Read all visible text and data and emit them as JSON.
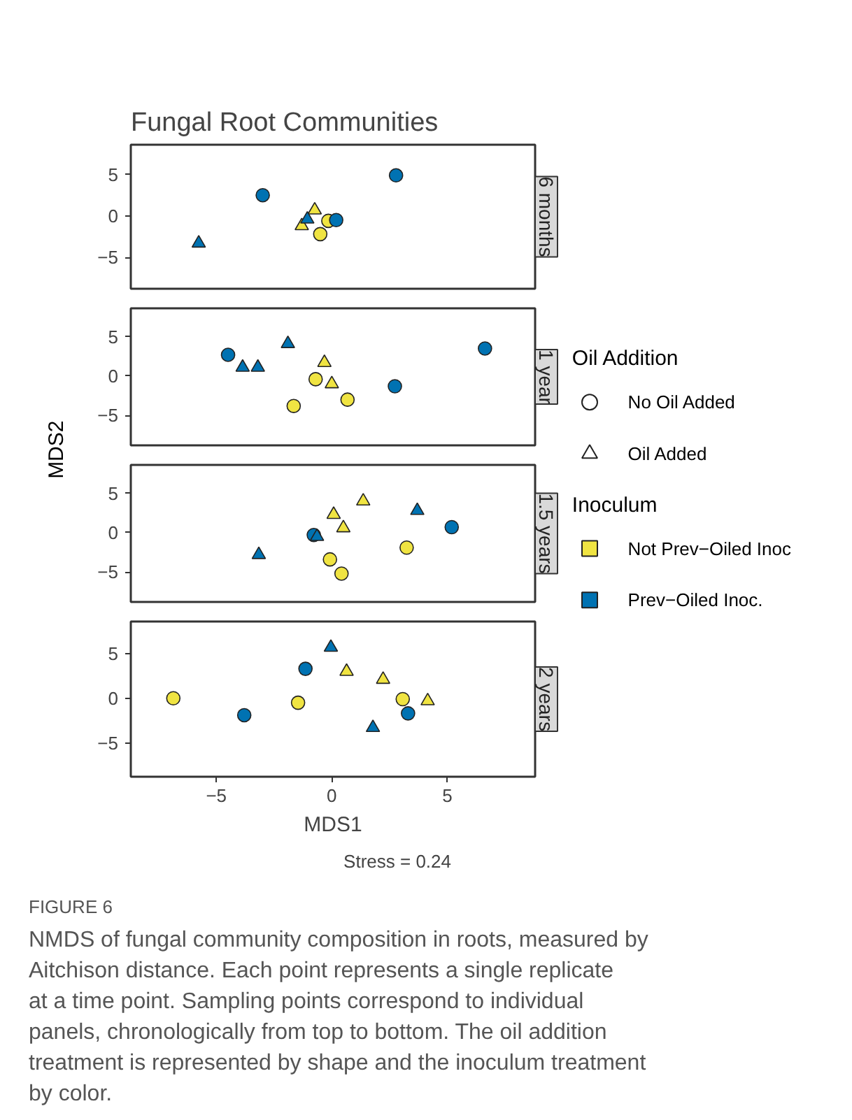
{
  "chart_data": [
    {
      "type": "scatter",
      "title": "Fungal Root Communities",
      "subtitle": "6 months",
      "xlim": [
        -8.7,
        8.8
      ],
      "ylim": [
        -8.8,
        8.6
      ],
      "xticks": [
        -5,
        0,
        5
      ],
      "yticks": [
        -5,
        0,
        5
      ],
      "tick_labels": "y",
      "grid": false,
      "series": [
        {
          "marker": "circle",
          "color": "#f0e442",
          "x": [
            -0.15,
            -0.5
          ],
          "values": [
            -0.6,
            -2.2
          ]
        },
        {
          "marker": "triangle",
          "color": "#f0e442",
          "x": [
            -0.74,
            -1.3
          ],
          "values": [
            0.7,
            -1.2
          ]
        },
        {
          "marker": "circle",
          "color": "#0072b2",
          "x": [
            -2.99,
            2.78,
            0.19
          ],
          "values": [
            2.5,
            4.9,
            -0.5
          ]
        },
        {
          "marker": "triangle",
          "color": "#0072b2",
          "x": [
            -5.76,
            -1.06
          ],
          "values": [
            -3.3,
            -0.4
          ]
        }
      ]
    },
    {
      "type": "scatter",
      "subtitle": "1 year",
      "ylabel": "MDS2",
      "xlim": [
        -8.7,
        8.8
      ],
      "ylim": [
        -8.8,
        8.6
      ],
      "xticks": [
        -5,
        0,
        5
      ],
      "yticks": [
        -5,
        0,
        5
      ],
      "tick_labels": "y",
      "grid": false,
      "series": [
        {
          "marker": "circle",
          "color": "#f0e442",
          "x": [
            -0.7,
            0.68,
            -1.65
          ],
          "values": [
            -0.4,
            -3.0,
            -3.8
          ]
        },
        {
          "marker": "triangle",
          "color": "#f0e442",
          "x": [
            -0.32,
            0.0
          ],
          "values": [
            1.7,
            -1.0
          ]
        },
        {
          "marker": "circle",
          "color": "#0072b2",
          "x": [
            -4.49,
            6.63,
            2.73
          ],
          "values": [
            2.7,
            3.5,
            -1.3
          ]
        },
        {
          "marker": "triangle",
          "color": "#0072b2",
          "x": [
            -3.86,
            -3.2,
            -1.9
          ],
          "values": [
            1.1,
            1.1,
            4.1
          ]
        }
      ]
    },
    {
      "type": "scatter",
      "subtitle": "1.5 years",
      "xlim": [
        -8.7,
        8.8
      ],
      "ylim": [
        -8.8,
        8.6
      ],
      "xticks": [
        -5,
        0,
        5
      ],
      "yticks": [
        -5,
        0,
        5
      ],
      "tick_labels": "y",
      "grid": false,
      "series": [
        {
          "marker": "circle",
          "color": "#f0e442",
          "x": [
            3.24,
            -0.08,
            0.42
          ],
          "values": [
            -1.9,
            -3.4,
            -5.2
          ]
        },
        {
          "marker": "triangle",
          "color": "#f0e442",
          "x": [
            1.36,
            0.08,
            0.5
          ],
          "values": [
            4.0,
            2.3,
            0.6
          ]
        },
        {
          "marker": "circle",
          "color": "#0072b2",
          "x": [
            -0.78,
            5.19
          ],
          "values": [
            -0.3,
            0.7
          ]
        },
        {
          "marker": "triangle",
          "color": "#0072b2",
          "x": [
            3.7,
            -0.64,
            -3.16
          ],
          "values": [
            2.8,
            -0.5,
            -2.8
          ]
        }
      ]
    },
    {
      "type": "scatter",
      "subtitle": "2 years",
      "xlabel": "MDS1",
      "xlim": [
        -8.7,
        8.8
      ],
      "ylim": [
        -8.8,
        8.6
      ],
      "xticks": [
        -5,
        0,
        5
      ],
      "yticks": [
        -5,
        0,
        5
      ],
      "grid": false,
      "annotations": [
        "Stress = 0.24",
        "FIGURE 6",
        "NMDS of fungal community composition in roots, measured by Aitchison distance. Each point represents a single replicate at a time point. Sampling points correspond to individual panels, chronologically from top to bottom. The oil addition treatment is represented by shape and the inoculum treatment by color."
      ],
      "series": [
        {
          "marker": "circle",
          "color": "#f0e442",
          "x": [
            -6.86,
            -1.46,
            3.07
          ],
          "values": [
            0,
            -0.5,
            -0.1
          ]
        },
        {
          "marker": "triangle",
          "color": "#f0e442",
          "x": [
            0.64,
            2.22,
            4.15
          ],
          "values": [
            3.0,
            2.1,
            -0.3
          ]
        },
        {
          "marker": "circle",
          "color": "#0072b2",
          "x": [
            -3.79,
            -1.14,
            3.3
          ],
          "values": [
            -1.9,
            3.3,
            -1.7
          ]
        },
        {
          "marker": "triangle",
          "color": "#0072b2",
          "x": [
            -0.04,
            1.78
          ],
          "values": [
            5.7,
            -3.3
          ]
        }
      ]
    },
    {
      "type": "other",
      "annotations": [
        "Oil Addition",
        "Inoculum"
      ],
      "series": [
        {
          "name": "No Oil Added",
          "marker": "circle",
          "color": null
        },
        {
          "name": "Oil Added",
          "marker": "triangle",
          "color": null
        },
        {
          "name": "Not Prev−Oiled Inoc",
          "marker": "square",
          "color": "#f0e442"
        },
        {
          "name": "Prev−Oiled Inoc.",
          "marker": "square",
          "color": "#0072b2"
        }
      ]
    }
  ]
}
